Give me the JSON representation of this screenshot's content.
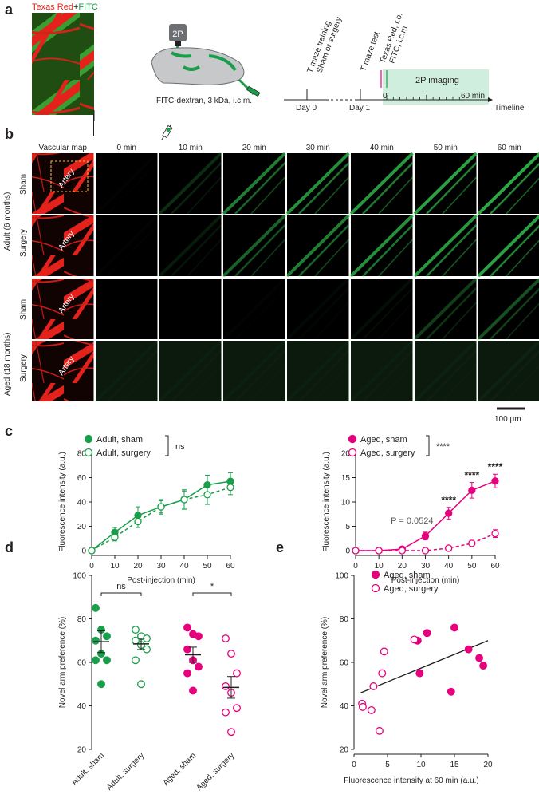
{
  "colors": {
    "adult": "#1a9e4b",
    "aged": "#e6007e",
    "fitc_strip": "#cfeedd",
    "vessel_red": "#e4221b",
    "vessel_green": "#2fb34a"
  },
  "panel_a": {
    "label": "a",
    "micrograph_title_red": "Texas Red",
    "micrograph_title_plus": "+",
    "micrograph_title_green": "FITC",
    "scope_label": "2P",
    "injection_label": "FITC-dextran, 3 kDa, i.c.m.",
    "timeline": {
      "event_day0": "T maze training",
      "event_day0_b": "Sham or surgery",
      "event_day1": "T maze test",
      "event_ro": "Texas Red, r.o.",
      "event_icm": "FITC, i.c.m.",
      "day0": "Day 0",
      "day1": "Day 1",
      "imaging": "2P imaging",
      "t0": "0",
      "t60": "60 min",
      "axis_label": "Timeline"
    }
  },
  "panel_b": {
    "label": "b",
    "columns": [
      "Vascular map",
      "0 min",
      "10 min",
      "20 min",
      "30 min",
      "40 min",
      "50 min",
      "60 min"
    ],
    "group_adult": "Adult (6 months)",
    "group_aged": "Aged (18 months)",
    "rows": [
      {
        "condition": "Sham",
        "artery": "Artery",
        "green_levels": [
          0.02,
          0.25,
          0.7,
          0.8,
          0.85,
          0.9,
          0.95
        ]
      },
      {
        "condition": "Surgery",
        "artery": "Artery",
        "green_levels": [
          0.02,
          0.15,
          0.55,
          0.7,
          0.8,
          0.85,
          0.9
        ]
      },
      {
        "condition": "Sham",
        "artery": "Artery",
        "green_levels": [
          0.0,
          0.0,
          0.02,
          0.05,
          0.08,
          0.35,
          0.45
        ]
      },
      {
        "condition": "Surgery",
        "artery": "Artery",
        "green_levels": [
          0.04,
          0.04,
          0.04,
          0.04,
          0.04,
          0.05,
          0.06
        ]
      }
    ],
    "scale_bar": "100 μm"
  },
  "chart_data": [
    {
      "type": "line",
      "panel": "c",
      "title": "",
      "xlabel": "Post-injection (min)",
      "ylabel": "Fluorescence intensity (a.u.)",
      "x": [
        0,
        10,
        20,
        30,
        40,
        50,
        60
      ],
      "xlim": [
        0,
        60
      ],
      "ylim": [
        0,
        80
      ],
      "yticks": [
        0,
        20,
        40,
        60,
        80
      ],
      "series": [
        {
          "name": "Adult, sham",
          "style": "filled-solid",
          "values": [
            0,
            15,
            29,
            36,
            42,
            54,
            57
          ],
          "errors": [
            0,
            4,
            7,
            6,
            8,
            8,
            7
          ]
        },
        {
          "name": "Adult, surgery",
          "style": "open-dashed",
          "values": [
            0,
            11,
            24,
            36,
            42,
            46,
            52
          ],
          "errors": [
            0,
            3,
            5,
            5,
            7,
            8,
            6
          ]
        }
      ],
      "significance": "ns"
    },
    {
      "type": "line",
      "panel": "c",
      "title": "",
      "xlabel": "Post-injection (min)",
      "ylabel": "Fluorescence intensity (a.u.)",
      "x": [
        0,
        10,
        20,
        30,
        40,
        50,
        60
      ],
      "xlim": [
        0,
        60
      ],
      "ylim": [
        0,
        20
      ],
      "yticks": [
        0,
        5,
        10,
        15,
        20
      ],
      "series": [
        {
          "name": "Aged, sham",
          "style": "filled-solid",
          "values": [
            0,
            0,
            0.3,
            3,
            7.7,
            12.4,
            14.3
          ],
          "errors": [
            0,
            0,
            0.3,
            0.8,
            1.2,
            1.6,
            1.4
          ]
        },
        {
          "name": "Aged, surgery",
          "style": "open-dashed",
          "values": [
            0,
            0,
            0,
            0,
            0.5,
            1.5,
            3.5
          ],
          "errors": [
            0,
            0,
            0,
            0,
            0.2,
            0.6,
            0.8
          ]
        }
      ],
      "significance": "****",
      "annotations": [
        {
          "x": 30,
          "text": "P = 0.0524"
        },
        {
          "x": 40,
          "text": "****"
        },
        {
          "x": 50,
          "text": "****"
        },
        {
          "x": 60,
          "text": "****"
        }
      ]
    },
    {
      "type": "scatter",
      "panel": "d",
      "title": "",
      "xlabel": "",
      "ylabel": "Novel arm preference (%)",
      "categories": [
        "Adult, sham",
        "Adult, surgery",
        "Aged, sham",
        "Aged, surgery"
      ],
      "ylim": [
        20,
        100
      ],
      "yticks": [
        20,
        40,
        60,
        80,
        100
      ],
      "groups": [
        {
          "name": "Adult, sham",
          "filled": true,
          "mean": 69.5,
          "sem": 5,
          "points": [
            85,
            75,
            72,
            70,
            64,
            61,
            61,
            50
          ]
        },
        {
          "name": "Adult, surgery",
          "filled": false,
          "mean": 68.5,
          "sem": 2.6,
          "points": [
            75,
            72,
            71,
            70,
            68,
            66,
            61,
            50
          ]
        },
        {
          "name": "Aged, sham",
          "filled": true,
          "mean": 63.5,
          "sem": 3.5,
          "points": [
            76,
            73,
            72,
            66,
            61,
            58,
            55,
            47
          ]
        },
        {
          "name": "Aged, surgery",
          "filled": false,
          "mean": 48.5,
          "sem": 5,
          "points": [
            71,
            64,
            55,
            49,
            46,
            39,
            37,
            28
          ]
        }
      ],
      "comparisons": [
        {
          "pair": [
            0,
            1
          ],
          "text": "ns"
        },
        {
          "pair": [
            2,
            3
          ],
          "text": "*"
        }
      ]
    },
    {
      "type": "scatter",
      "panel": "e",
      "title": "",
      "xlabel": "Fluorescence intensity at 60 min (a.u.)",
      "ylabel": "Novel arm preference (%)",
      "xlim": [
        0,
        20
      ],
      "ylim": [
        20,
        100
      ],
      "xticks": [
        0,
        5,
        10,
        15,
        20
      ],
      "yticks": [
        20,
        40,
        60,
        80,
        100
      ],
      "series": [
        {
          "name": "Aged, sham",
          "filled": true,
          "points": [
            [
              9.5,
              70
            ],
            [
              10.9,
              73.5
            ],
            [
              15,
              76
            ],
            [
              9.8,
              55
            ],
            [
              14.5,
              46.5
            ],
            [
              17.1,
              66
            ],
            [
              18.7,
              62
            ],
            [
              19.3,
              58.5
            ]
          ]
        },
        {
          "name": "Aged, surgery",
          "filled": false,
          "points": [
            [
              1.2,
              41
            ],
            [
              1.3,
              39.5
            ],
            [
              2.6,
              38
            ],
            [
              2.9,
              49
            ],
            [
              4.2,
              55
            ],
            [
              4.5,
              65
            ],
            [
              3.8,
              28.5
            ],
            [
              9.0,
              70.5
            ]
          ]
        }
      ],
      "fit_line": {
        "x": [
          1,
          20
        ],
        "y": [
          46,
          70
        ]
      }
    }
  ],
  "panel_labels": {
    "c": "c",
    "d": "d",
    "e": "e"
  }
}
